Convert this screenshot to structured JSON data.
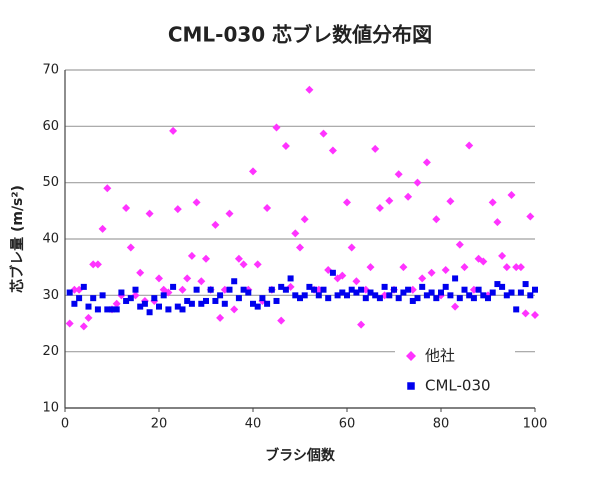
{
  "chart_data": {
    "type": "scatter",
    "title": "CML-030 芯ブレ数値分布図",
    "x_label": "ブラシ個数",
    "y_label": "芯ブレ量 (m/s²)",
    "xlim": [
      0,
      100
    ],
    "xticks": [
      0,
      20,
      40,
      60,
      80,
      100
    ],
    "ylim": [
      10,
      70
    ],
    "yticks": [
      10,
      20,
      30,
      40,
      50,
      60,
      70
    ],
    "grid": true,
    "legend": "lower right",
    "x": [
      1,
      2,
      3,
      4,
      5,
      6,
      7,
      8,
      9,
      10,
      11,
      12,
      13,
      14,
      15,
      16,
      17,
      18,
      19,
      20,
      21,
      22,
      23,
      24,
      25,
      26,
      27,
      28,
      29,
      30,
      31,
      32,
      33,
      34,
      35,
      36,
      37,
      38,
      39,
      40,
      41,
      42,
      43,
      44,
      45,
      46,
      47,
      48,
      49,
      50,
      51,
      52,
      53,
      54,
      55,
      56,
      57,
      58,
      59,
      60,
      61,
      62,
      63,
      64,
      65,
      66,
      67,
      68,
      69,
      70,
      71,
      72,
      73,
      74,
      75,
      76,
      77,
      78,
      79,
      80,
      81,
      82,
      83,
      84,
      85,
      86,
      87,
      88,
      89,
      90,
      91,
      92,
      93,
      94,
      95,
      96,
      97,
      98,
      99,
      100
    ],
    "series": [
      {
        "name": "他社",
        "color": "#ff33ff",
        "marker": "diamond",
        "values": [
          25,
          31,
          31,
          24.5,
          26,
          35.5,
          35.5,
          41.8,
          49,
          27.5,
          28.5,
          30,
          45.5,
          38.5,
          30,
          34,
          29,
          44.5,
          29,
          33,
          31,
          30.5,
          59.2,
          45.3,
          31,
          33,
          37,
          46.5,
          32.5,
          36.5,
          31,
          42.5,
          26,
          31,
          44.5,
          27.5,
          36.5,
          35.5,
          31,
          52,
          35.5,
          29,
          45.5,
          31,
          59.8,
          25.5,
          56.5,
          31.5,
          41,
          38.5,
          43.5,
          66.5,
          31,
          31,
          58.7,
          34.5,
          55.7,
          33,
          33.5,
          46.5,
          38.5,
          32.5,
          24.8,
          31,
          35,
          56,
          45.5,
          30,
          46.8,
          31,
          51.5,
          35,
          47.5,
          31,
          50,
          33,
          53.6,
          34,
          43.5,
          30,
          34.5,
          46.7,
          28,
          39,
          35,
          56.6,
          31,
          36.5,
          36,
          30,
          46.5,
          43,
          37,
          35,
          47.8,
          35,
          35,
          26.8,
          44,
          26.5
        ]
      },
      {
        "name": "CML-030",
        "color": "#0000ee",
        "marker": "square",
        "values": [
          30.5,
          28.5,
          29.5,
          31.5,
          28,
          29.5,
          27.5,
          30,
          27.5,
          27.5,
          27.5,
          30.5,
          29,
          29.5,
          31,
          28,
          28.5,
          27,
          29.5,
          28,
          30,
          27.5,
          31.5,
          28,
          27.5,
          29,
          28.5,
          31,
          28.5,
          29,
          31,
          29,
          30,
          28.5,
          31,
          32.5,
          29.5,
          31,
          30.5,
          28.5,
          28,
          29.5,
          28.5,
          31,
          29,
          31.5,
          31,
          33,
          30,
          29.5,
          30,
          31.5,
          31,
          30,
          31,
          29.5,
          34,
          30,
          30.5,
          30,
          31,
          30.5,
          31,
          29.5,
          30.5,
          30,
          29.5,
          31.5,
          30,
          31,
          29.5,
          30.5,
          31,
          29,
          29.5,
          31.5,
          30,
          30.5,
          29.5,
          30.5,
          31.5,
          30,
          33,
          29.5,
          31,
          30,
          29.5,
          31,
          30,
          29.5,
          30.5,
          32,
          31.5,
          30,
          30.5,
          27.5,
          30.5,
          32,
          30,
          31
        ]
      }
    ]
  }
}
